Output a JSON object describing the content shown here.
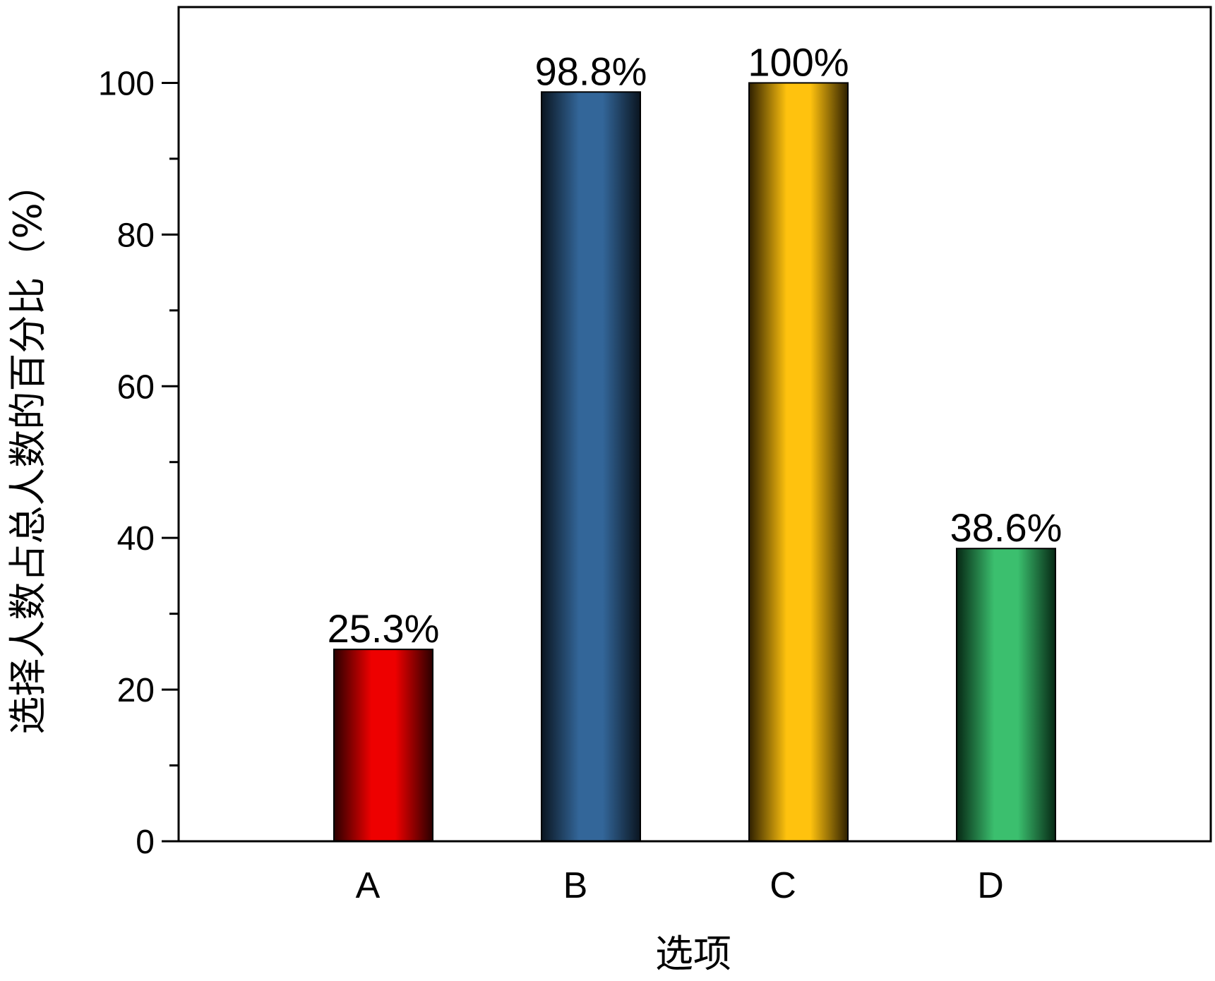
{
  "chart_data": {
    "type": "bar",
    "categories": [
      "A",
      "B",
      "C",
      "D"
    ],
    "values": [
      25.3,
      98.8,
      100,
      38.6
    ],
    "data_labels": [
      "25.3%",
      "98.8%",
      "100%",
      "38.6%"
    ],
    "xlabel": "选项",
    "ylabel": "选择人数占总人数的百分比（%）",
    "ylim": [
      0,
      110
    ],
    "yticks": [
      0,
      20,
      40,
      60,
      80,
      100
    ],
    "yticks_minor": [
      10,
      30,
      50,
      70,
      90
    ],
    "grid": false,
    "colors": {
      "A": {
        "center": "#ee0000",
        "edge": "#2a0000"
      },
      "B": {
        "center": "#336699",
        "edge": "#0a1520"
      },
      "C": {
        "center": "#ffc20e",
        "edge": "#2e2000"
      },
      "D": {
        "center": "#3bbf6e",
        "edge": "#062814"
      }
    }
  }
}
